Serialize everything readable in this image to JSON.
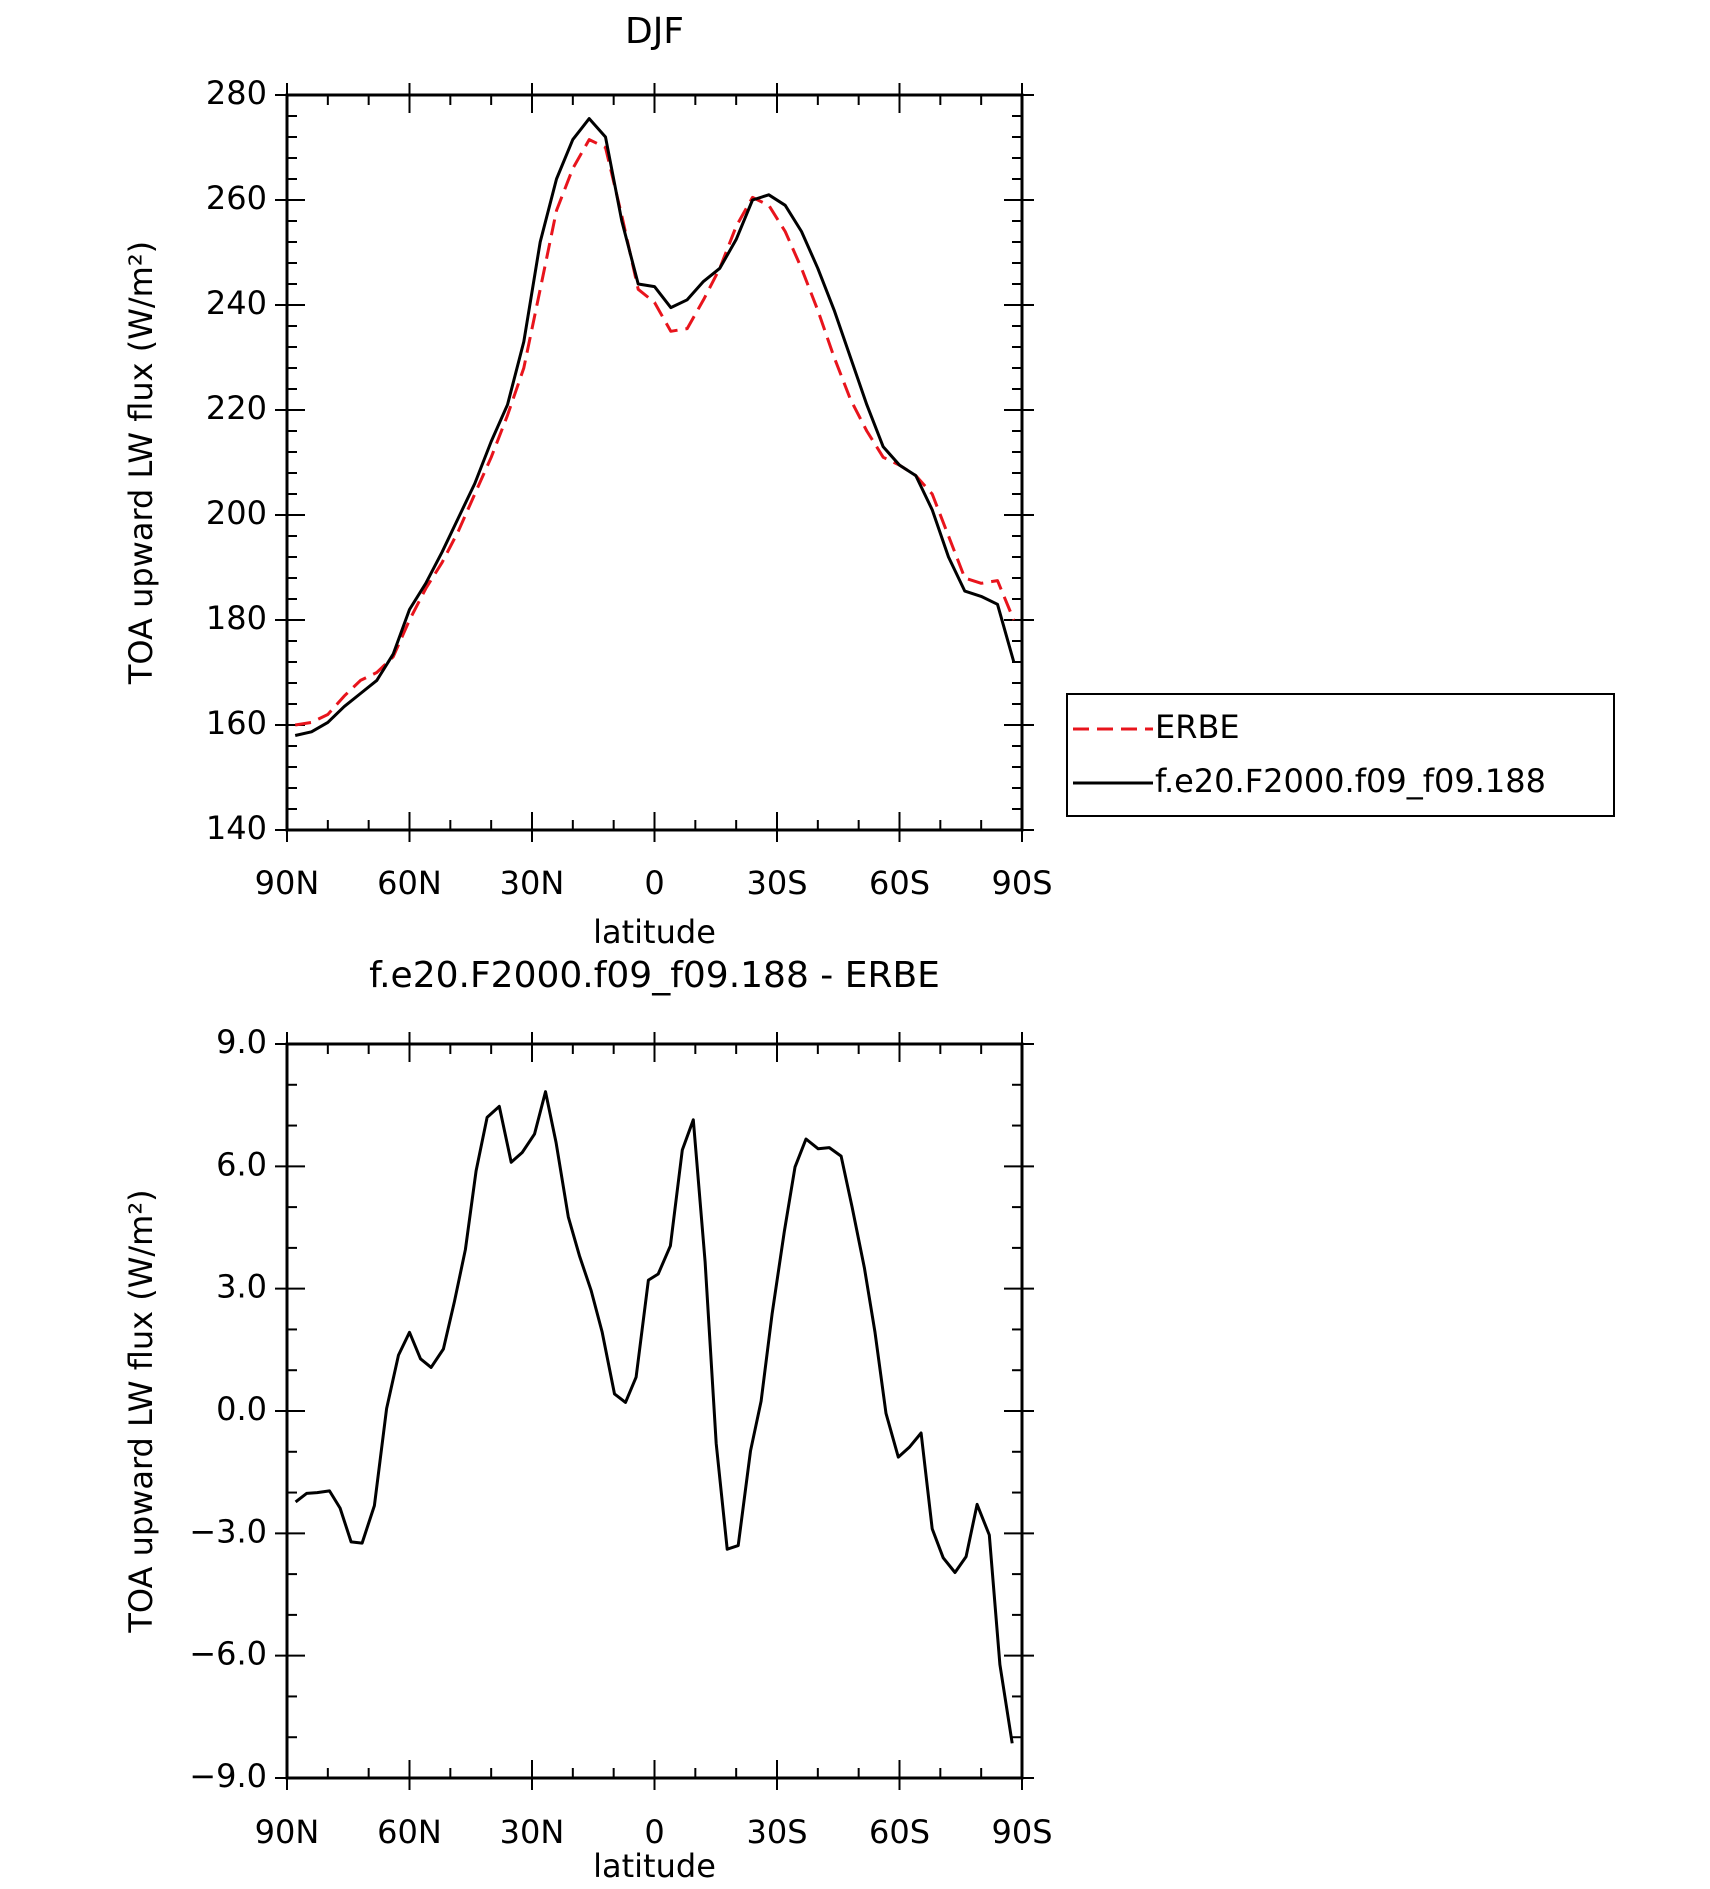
{
  "chart_data": [
    {
      "type": "line",
      "title": "DJF",
      "xlabel": "latitude",
      "ylabel": "TOA upward LW flux (W/m²)",
      "x": [
        88,
        84,
        80,
        76,
        72,
        68,
        64,
        60,
        56,
        52,
        48,
        44,
        40,
        36,
        32,
        28,
        24,
        20,
        16,
        12,
        8,
        4,
        0,
        -4,
        -8,
        -12,
        -16,
        -20,
        -24,
        -28,
        -32,
        -36,
        -40,
        -44,
        -48,
        -52,
        -56,
        -60,
        -64,
        -68,
        -72,
        -76,
        -80,
        -84,
        -88
      ],
      "xlim": [
        90,
        -90
      ],
      "xticks": [
        {
          "value": 90,
          "label": "90N"
        },
        {
          "value": 60,
          "label": "60N"
        },
        {
          "value": 30,
          "label": "30N"
        },
        0,
        {
          "value": -30,
          "label": "30S"
        },
        {
          "value": -60,
          "label": "60S"
        },
        {
          "value": -90,
          "label": "90S"
        }
      ],
      "ylim": [
        140,
        280
      ],
      "yticks": [
        140,
        160,
        180,
        200,
        220,
        240,
        260,
        280
      ],
      "legend": "right",
      "series": [
        {
          "name": "ERBE",
          "color": "#e8141c",
          "dash": true,
          "values": [
            160,
            160.5,
            162,
            165.5,
            168.5,
            170,
            173,
            180,
            186,
            191,
            197,
            204,
            211,
            219,
            228,
            243,
            258,
            266,
            271.5,
            270,
            257,
            243,
            240.5,
            235,
            235.5,
            241,
            247,
            255,
            260.5,
            259,
            254,
            247,
            239,
            230,
            222,
            216,
            211,
            209.5,
            207.5,
            204,
            196,
            188,
            187,
            187.5,
            180
          ]
        },
        {
          "name": "f.e20.F2000.f09_f09.188",
          "color": "#000000",
          "dash": false,
          "values": [
            158,
            158.7,
            160.5,
            163.5,
            166,
            168.5,
            173.5,
            182,
            187,
            193,
            199.5,
            206,
            214,
            221,
            233,
            252,
            264,
            271.5,
            275.5,
            272,
            256,
            244,
            243.5,
            239.5,
            241,
            244.5,
            247,
            252.5,
            260,
            261,
            259,
            254,
            247,
            239,
            230,
            221,
            213,
            209.5,
            207.5,
            201,
            192,
            185.5,
            184.5,
            183,
            172
          ]
        }
      ]
    },
    {
      "type": "line",
      "title": "f.e20.F2000.f09_f09.188 - ERBE",
      "xlabel": "latitude",
      "ylabel": "TOA upward LW flux (W/m²)",
      "x": [
        87.9,
        85.2,
        82.6,
        79.6,
        77,
        74.3,
        71.6,
        68.6,
        65.6,
        62.7,
        60,
        57.3,
        54.7,
        51.7,
        49,
        46.3,
        43.7,
        41,
        38,
        35.1,
        32.4,
        29.4,
        26.7,
        24.1,
        21.1,
        18.4,
        15.5,
        12.8,
        9.8,
        7.1,
        4.5,
        1.5,
        -0.9,
        -3.9,
        -6.8,
        -9.5,
        -12.4,
        -15.1,
        -17.8,
        -20.5,
        -23.5,
        -26.1,
        -28.8,
        -31.8,
        -34.4,
        -37.1,
        -40.1,
        -42.8,
        -45.7,
        -48.4,
        -51.4,
        -54,
        -56.7,
        -59.7,
        -62.4,
        -65.3,
        -68,
        -70.7,
        -73.6,
        -76.3,
        -79,
        -82,
        -84.6,
        -87.6
      ],
      "xlim": [
        90,
        -90
      ],
      "xticks": [
        {
          "value": 90,
          "label": "90N"
        },
        {
          "value": 60,
          "label": "60N"
        },
        {
          "value": 30,
          "label": "30N"
        },
        0,
        {
          "value": -30,
          "label": "30S"
        },
        {
          "value": -60,
          "label": "60S"
        },
        {
          "value": -90,
          "label": "90S"
        }
      ],
      "ylim": [
        -9,
        9
      ],
      "yticks": [
        {
          "value": -9,
          "label": "−9.0"
        },
        {
          "value": -6,
          "label": "−6.0"
        },
        {
          "value": -3,
          "label": "−3.0"
        },
        {
          "value": 0,
          "label": "0.0"
        },
        {
          "value": 3,
          "label": "3.0"
        },
        {
          "value": 6,
          "label": "6.0"
        },
        {
          "value": 9,
          "label": "9.0"
        }
      ],
      "series": [
        {
          "color": "#000000",
          "dash": false,
          "values": [
            -2.23,
            -2.02,
            -2,
            -1.96,
            -2.38,
            -3.21,
            -3.24,
            -2.32,
            0.06,
            1.37,
            1.93,
            1.28,
            1.07,
            1.52,
            2.68,
            3.96,
            5.89,
            7.2,
            7.47,
            6.1,
            6.34,
            6.79,
            7.83,
            6.58,
            4.76,
            3.81,
            2.95,
            1.93,
            0.42,
            0.21,
            0.83,
            3.21,
            3.36,
            4.05,
            6.4,
            7.14,
            3.66,
            -0.8,
            -3.39,
            -3.3,
            -0.98,
            0.24,
            2.38,
            4.4,
            5.98,
            6.67,
            6.43,
            6.46,
            6.25,
            5,
            3.51,
            1.93,
            -0.06,
            -1.13,
            -0.89,
            -0.54,
            -2.89,
            -3.6,
            -3.96,
            -3.57,
            -2.29,
            -3.04,
            -6.22,
            -8.15
          ]
        }
      ]
    }
  ]
}
